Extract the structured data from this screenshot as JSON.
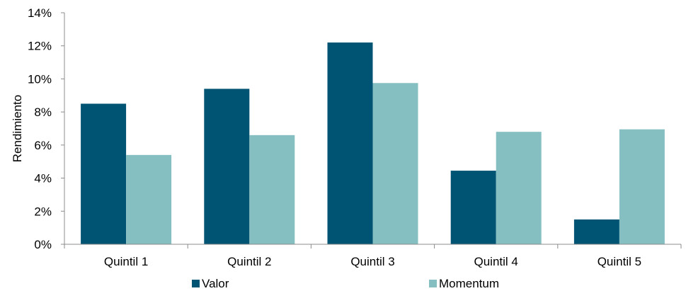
{
  "chart_data": {
    "type": "bar",
    "title": "",
    "xlabel": "",
    "ylabel": "Rendimiento",
    "categories": [
      "Quintil 1",
      "Quintil 2",
      "Quintil 3",
      "Quintil 4",
      "Quintil 5"
    ],
    "series": [
      {
        "name": "Valor",
        "color": "#005473",
        "values": [
          8.5,
          9.4,
          12.2,
          4.45,
          1.5
        ]
      },
      {
        "name": "Momentum",
        "color": "#85bfc1",
        "values": [
          5.4,
          6.6,
          9.75,
          6.8,
          6.95
        ]
      }
    ],
    "ylim": [
      0,
      14
    ],
    "yticks": [
      "0%",
      "2%",
      "4%",
      "6%",
      "8%",
      "10%",
      "12%",
      "14%"
    ],
    "grid": false,
    "legend": "bottom"
  }
}
